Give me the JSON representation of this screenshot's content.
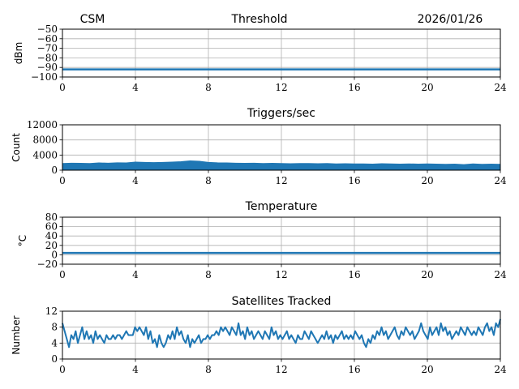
{
  "header": {
    "left": "CSM",
    "right": "2026/01/26"
  },
  "colors": {
    "line": "#1f77b4",
    "grid": "#b0b0b0"
  },
  "chart_data": [
    {
      "type": "line",
      "title": "Threshold",
      "ylabel": "dBm",
      "xlim": [
        0,
        24
      ],
      "ylim": [
        -100,
        -50
      ],
      "xticks": [
        "0",
        "4",
        "8",
        "12",
        "16",
        "20",
        "24"
      ],
      "yticks": [
        "−50",
        "−60",
        "−70",
        "−80",
        "−90",
        "−100"
      ],
      "ytick_values": [
        -50,
        -60,
        -70,
        -80,
        -90,
        -100
      ],
      "x": [
        0,
        24
      ],
      "y": [
        -92,
        -92
      ]
    },
    {
      "type": "line",
      "title": "Triggers/sec",
      "ylabel": "Count",
      "xlim": [
        0,
        24
      ],
      "ylim": [
        0,
        12000
      ],
      "xticks": [
        "0",
        "4",
        "8",
        "12",
        "16",
        "20",
        "24"
      ],
      "yticks": [
        "12000",
        "8000",
        "4000",
        "0"
      ],
      "ytick_values": [
        12000,
        8000,
        4000,
        0
      ],
      "x": [
        0,
        0.5,
        1,
        1.5,
        2,
        2.5,
        3,
        3.5,
        4,
        4.5,
        5,
        5.5,
        6,
        6.5,
        7,
        7.5,
        8,
        8.5,
        9,
        9.5,
        10,
        10.5,
        11,
        11.5,
        12,
        12.5,
        13,
        13.5,
        14,
        14.5,
        15,
        15.5,
        16,
        16.5,
        17,
        17.5,
        18,
        18.5,
        19,
        19.5,
        20,
        20.5,
        21,
        21.5,
        22,
        22.5,
        23,
        23.5,
        24
      ],
      "y": [
        1600,
        1700,
        1650,
        1600,
        1750,
        1700,
        1800,
        1750,
        2000,
        1900,
        1850,
        1900,
        2000,
        2100,
        2300,
        2200,
        1900,
        1800,
        1750,
        1700,
        1650,
        1700,
        1600,
        1650,
        1600,
        1550,
        1600,
        1600,
        1550,
        1600,
        1500,
        1550,
        1500,
        1500,
        1450,
        1550,
        1500,
        1450,
        1500,
        1450,
        1500,
        1450,
        1400,
        1450,
        1300,
        1500,
        1400,
        1450,
        1400
      ]
    },
    {
      "type": "line",
      "title": "Temperature",
      "ylabel": "°C",
      "xlim": [
        0,
        24
      ],
      "ylim": [
        -20,
        80
      ],
      "xticks": [
        "0",
        "4",
        "8",
        "12",
        "16",
        "20",
        "24"
      ],
      "yticks": [
        "80",
        "60",
        "40",
        "20",
        "0",
        "−20"
      ],
      "ytick_values": [
        80,
        60,
        40,
        20,
        0,
        -20
      ],
      "x": [
        0,
        24
      ],
      "y": [
        4,
        4
      ]
    },
    {
      "type": "line",
      "title": "Satellites Tracked",
      "ylabel": "Number",
      "xlim": [
        0,
        24
      ],
      "ylim": [
        0,
        12
      ],
      "xticks": [
        "0",
        "4",
        "8",
        "12",
        "16",
        "20",
        "24"
      ],
      "yticks": [
        "12",
        "8",
        "4",
        "0"
      ],
      "ytick_values": [
        12,
        8,
        4,
        0
      ],
      "x_step_hours": 0.2,
      "y": [
        9,
        7,
        5,
        3,
        6,
        5,
        7,
        4,
        6,
        8,
        5,
        7,
        5,
        6,
        4,
        7,
        5,
        6,
        5,
        4,
        6,
        5,
        5,
        6,
        5,
        6,
        6,
        5,
        6,
        7,
        6,
        6,
        6,
        8,
        7,
        8,
        7,
        6,
        8,
        5,
        7,
        4,
        5,
        3,
        6,
        4,
        3,
        4,
        6,
        5,
        7,
        5,
        8,
        6,
        7,
        5,
        4,
        6,
        3,
        5,
        4,
        5,
        6,
        4,
        5,
        5,
        6,
        5,
        6,
        6,
        7,
        6,
        8,
        7,
        8,
        7,
        6,
        8,
        7,
        6,
        9,
        6,
        7,
        5,
        8,
        6,
        7,
        5,
        6,
        7,
        6,
        5,
        7,
        6,
        5,
        8,
        6,
        7,
        5,
        6,
        5,
        6,
        7,
        5,
        6,
        5,
        4,
        6,
        5,
        5,
        7,
        6,
        5,
        7,
        6,
        5,
        4,
        5,
        6,
        5,
        7,
        5,
        6,
        4,
        6,
        5,
        6,
        7,
        5,
        6,
        5,
        6,
        5,
        7,
        6,
        5,
        6,
        4,
        3,
        5,
        4,
        6,
        5,
        7,
        6,
        8,
        6,
        7,
        5,
        6,
        7,
        8,
        6,
        5,
        7,
        6,
        8,
        7,
        6,
        7,
        5,
        6,
        7,
        9,
        7,
        6,
        5,
        8,
        6,
        7,
        8,
        6,
        9,
        7,
        8,
        6,
        7,
        5,
        6,
        7,
        6,
        8,
        7,
        6,
        8,
        7,
        6,
        7,
        6,
        8,
        7,
        6,
        8,
        9,
        7,
        8,
        6,
        9,
        8,
        10
      ]
    }
  ]
}
